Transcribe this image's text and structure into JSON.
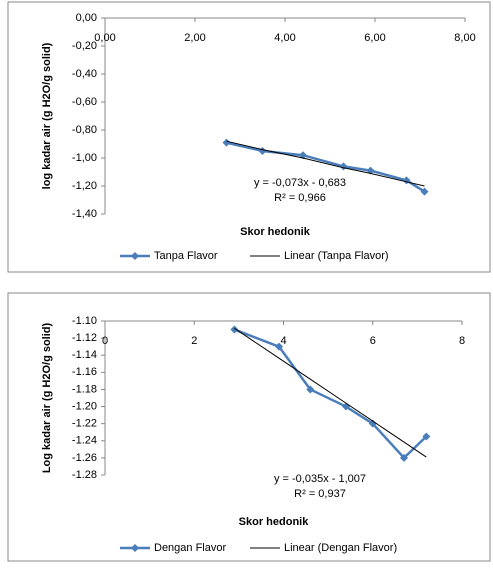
{
  "chart_data": [
    {
      "type": "line",
      "y_label": "log kadar air (g H2O/g solid)",
      "x_label": "Skor hedonik",
      "x": [
        2.7,
        3.5,
        4.4,
        5.3,
        5.9,
        6.7,
        7.1
      ],
      "series": [
        {
          "name": "Tanpa Flavor",
          "color": "#4a7ebb",
          "marker": "diamond",
          "values": [
            -0.89,
            -0.95,
            -0.98,
            -1.06,
            -1.09,
            -1.16,
            -1.24
          ]
        },
        {
          "name": "Linear (Tanpa Flavor)",
          "color": "#000000",
          "marker": "none",
          "values": [
            -0.88,
            -0.94,
            -1.0,
            -1.07,
            -1.11,
            -1.17,
            -1.2
          ]
        }
      ],
      "xlim": [
        0,
        8
      ],
      "xticks": [
        {
          "value": 0,
          "label": "0,00"
        },
        {
          "value": 2,
          "label": "2,00"
        },
        {
          "value": 4,
          "label": "4,00"
        },
        {
          "value": 6,
          "label": "6,00"
        },
        {
          "value": 8,
          "label": "8,00"
        }
      ],
      "ylim": [
        0,
        -1.4
      ],
      "yticks": [
        {
          "value": 0,
          "label": "0,00"
        },
        {
          "value": -0.2,
          "label": "-0,20"
        },
        {
          "value": -0.4,
          "label": "-0,40"
        },
        {
          "value": -0.6,
          "label": "-0,60"
        },
        {
          "value": -0.8,
          "label": "-0,80"
        },
        {
          "value": -1.0,
          "label": "-1,00"
        },
        {
          "value": -1.2,
          "label": "-1,20"
        },
        {
          "value": -1.4,
          "label": "-1,40"
        }
      ],
      "annotations": [
        "y = -0,073x - 0,683",
        "R² = 0,966"
      ],
      "grid": false,
      "legend": "bottom"
    },
    {
      "type": "line",
      "y_label": "Log kadar air (g H2O/g solid)",
      "x_label": "Skor hedonik",
      "x": [
        2.9,
        3.9,
        4.6,
        5.4,
        6.0,
        6.7,
        7.2
      ],
      "series": [
        {
          "name": "Dengan Flavor",
          "color": "#4a7ebb",
          "marker": "diamond",
          "values": [
            -1.11,
            -1.13,
            -1.18,
            -1.2,
            -1.22,
            -1.26,
            -1.235
          ]
        },
        {
          "name": "Linear (Dengan Flavor)",
          "color": "#000000",
          "marker": "none",
          "values": [
            -1.1085,
            -1.1435,
            -1.168,
            -1.196,
            -1.217,
            -1.2415,
            -1.259
          ]
        }
      ],
      "xlim": [
        0,
        8
      ],
      "xticks": [
        0,
        2,
        4,
        6,
        8
      ],
      "ylim": [
        -1.1,
        -1.28
      ],
      "yticks": [
        {
          "value": -1.1,
          "label": "-1.10"
        },
        -1.12,
        -1.14,
        -1.16,
        -1.18,
        {
          "value": -1.2,
          "label": "-1.20"
        },
        -1.22,
        -1.24,
        -1.26,
        -1.28
      ],
      "annotations": [
        "y = -0,035x - 1,007",
        "R² = 0,937"
      ],
      "grid": false,
      "legend": "bottom"
    }
  ]
}
